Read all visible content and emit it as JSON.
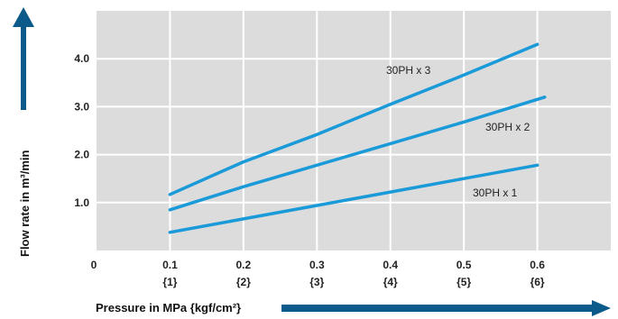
{
  "chart_data": {
    "type": "line",
    "xlabel": "Pressure in MPa {kgf/cm²}",
    "ylabel": "Flow rate in m³/min",
    "xlim": [
      0,
      0.7
    ],
    "ylim": [
      0,
      5
    ],
    "grid": true,
    "x_ticks": [
      {
        "value": 0,
        "label": "0",
        "sub": ""
      },
      {
        "value": 0.1,
        "label": "0.1",
        "sub": "{1}"
      },
      {
        "value": 0.2,
        "label": "0.2",
        "sub": "{2}"
      },
      {
        "value": 0.3,
        "label": "0.3",
        "sub": "{3}"
      },
      {
        "value": 0.4,
        "label": "0.4",
        "sub": "{4}"
      },
      {
        "value": 0.5,
        "label": "0.5",
        "sub": "{5}"
      },
      {
        "value": 0.6,
        "label": "0.6",
        "sub": "{6}"
      }
    ],
    "y_ticks": [
      {
        "value": 1,
        "label": "1.0"
      },
      {
        "value": 2,
        "label": "2.0"
      },
      {
        "value": 3,
        "label": "3.0"
      },
      {
        "value": 4,
        "label": "4.0"
      }
    ],
    "series": [
      {
        "name": "30PH x 3",
        "x": [
          0.1,
          0.2,
          0.3,
          0.4,
          0.5,
          0.6
        ],
        "values": [
          1.17,
          1.85,
          2.42,
          3.05,
          3.66,
          4.3
        ]
      },
      {
        "name": "30PH x 2",
        "x": [
          0.1,
          0.2,
          0.3,
          0.4,
          0.5,
          0.61
        ],
        "values": [
          0.85,
          1.33,
          1.78,
          2.23,
          2.68,
          3.2
        ]
      },
      {
        "name": "30PH x 1",
        "x": [
          0.1,
          0.2,
          0.3,
          0.4,
          0.5,
          0.6
        ],
        "values": [
          0.38,
          0.66,
          0.94,
          1.22,
          1.5,
          1.78
        ]
      }
    ],
    "line_color": "#1a9ad8",
    "grid_color": "#ffffff",
    "plot_background": "#dcdcdc",
    "arrow_color": "#0b5a8a"
  }
}
